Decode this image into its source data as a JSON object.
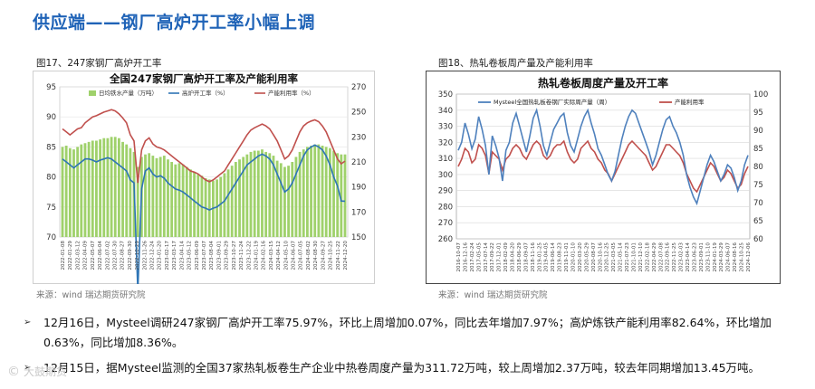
{
  "slide_title": "供应端——钢厂高炉开工率小幅上调",
  "figures": [
    {
      "caption": "图17、247家钢厂高炉开工率",
      "source": "来源：wind   瑞达期货研究院"
    },
    {
      "caption": "图18、热轧卷板周产量及产能利用率",
      "source": "来源：wind   瑞达期货研究院"
    }
  ],
  "bullets": [
    "12月16日，Mysteel调研247家钢厂高炉开工率75.97%，环比上周增加0.07%，同比去年增加7.97%；高炉炼铁产能利用率82.64%，环比增加0.63%，同比增加8.36%。",
    "12月15日，据Mysteel监测的全国37家热轧板卷生产企业中热卷周度产量为311.72万吨，较上周增加2.37万吨，较去年同期增加13.45万吨。"
  ],
  "bullet_marker": "➢",
  "watermark": {
    "icon": "wechat-like",
    "text": "大鼓期货"
  },
  "chart_data": [
    {
      "type": "bar+line",
      "title": "全国247家钢厂高炉开工率及产能利用率",
      "legend": [
        "日均铁水产量（万吨）",
        "高炉开工率（%）",
        "产能利用率（%）"
      ],
      "colors": {
        "bars": "#9fd16b",
        "blast_rate": "#2e75b6",
        "capacity": "#c0504d"
      },
      "y_left": {
        "min": 70,
        "max": 95,
        "ticks": [
          70,
          75,
          80,
          85,
          90,
          95
        ]
      },
      "y_right": {
        "min": 150,
        "max": 270,
        "ticks": [
          150,
          170,
          190,
          210,
          230,
          250,
          270
        ]
      },
      "x_labels": [
        "2022-01-08",
        "2022-01-29",
        "2022-03-12",
        "2022-04-09",
        "2022-05-07",
        "2022-06-04",
        "2022-07-02",
        "2022-07-30",
        "2022-08-27",
        "2022-09-30",
        "2022-10-29",
        "2022-11-26",
        "2022-12-24",
        "2023-01-20",
        "2023-02-17",
        "2023-03-17",
        "2023-04-14",
        "2023-05-12",
        "2023-06-09",
        "2023-07-07",
        "2023-08-04",
        "2023-09-01",
        "2023-09-29",
        "2023-10-27",
        "2023-11-24",
        "2023-12-22",
        "2024-01-19",
        "2024-02-16",
        "2024-03-15",
        "2024-04-12",
        "2024-05-10",
        "2024-06-07",
        "2024-07-05",
        "2024-08-02",
        "2024-08-30",
        "2024-09-27",
        "2024-10-25",
        "2024-11-22",
        "2024-12-20"
      ],
      "series": {
        "hot_metal": [
          222,
          223,
          221,
          220,
          222,
          224,
          225,
          226,
          227,
          227,
          228,
          229,
          229,
          230,
          230,
          229,
          226,
          224,
          221,
          218,
          206,
          214,
          216,
          217,
          215,
          213,
          214,
          215,
          212,
          210,
          208,
          209,
          208,
          206,
          204,
          202,
          200,
          199,
          197,
          196,
          195,
          196,
          198,
          201,
          204,
          207,
          210,
          212,
          214,
          216,
          218,
          219,
          219,
          220,
          218,
          217,
          215,
          211,
          209,
          206,
          207,
          210,
          214,
          218,
          220,
          222,
          223,
          224,
          224,
          223,
          222,
          221,
          219,
          217,
          216,
          216
        ],
        "blast_rate": [
          83,
          82.5,
          82,
          81.5,
          82,
          82.5,
          83,
          83,
          82.8,
          82.5,
          82.8,
          83,
          83.2,
          83,
          82.5,
          82,
          81.5,
          81,
          79.5,
          79,
          61,
          78,
          81,
          81.5,
          80.5,
          80,
          80.2,
          79.8,
          79,
          78.5,
          78,
          77.8,
          77.5,
          77,
          76.5,
          76,
          75.5,
          75,
          74.8,
          74.5,
          74.8,
          75,
          75.5,
          76,
          77,
          78,
          79,
          80,
          81,
          82,
          82.5,
          83,
          83.5,
          83.8,
          83.5,
          83,
          82,
          80.5,
          79,
          77.5,
          78,
          79,
          80.5,
          82,
          83.5,
          84.5,
          85,
          85.3,
          85,
          84.5,
          83.5,
          82,
          80,
          78.5,
          76,
          75.97
        ],
        "capacity": [
          88,
          87.5,
          87,
          87.5,
          88,
          88.2,
          89,
          89.5,
          90,
          90.2,
          90.5,
          90.8,
          91,
          91.2,
          91,
          90.5,
          89.8,
          89,
          87,
          86,
          79,
          84.5,
          86,
          86.5,
          85.5,
          85,
          84.8,
          84.5,
          84,
          83.5,
          83,
          82.5,
          82,
          81.5,
          81,
          80.8,
          80.5,
          80,
          79.5,
          79.2,
          79.5,
          80,
          80.5,
          81,
          82,
          83,
          84,
          85,
          86,
          87,
          87.8,
          88.2,
          88.5,
          88.8,
          88.5,
          88,
          87,
          86,
          84.5,
          83,
          83.5,
          84.5,
          86,
          87.5,
          88.5,
          89,
          89.3,
          89.5,
          89.2,
          88.5,
          87.5,
          86,
          84.5,
          83,
          82.2,
          82.64
        ]
      }
    },
    {
      "type": "line",
      "title": "热轧卷板周度产量及开工率",
      "legend": [
        "Mysteel全国热轧板卷钢厂实际周产量（周）",
        "产能利用率"
      ],
      "colors": {
        "output": "#4f81bd",
        "utilization": "#c0504d"
      },
      "y_left": {
        "min": 260,
        "max": 350,
        "ticks": [
          260,
          270,
          280,
          290,
          300,
          310,
          320,
          330,
          340,
          350
        ]
      },
      "y_right": {
        "min": 60,
        "max": 100,
        "ticks": [
          60,
          65,
          70,
          75,
          80,
          85,
          90,
          95,
          100
        ]
      },
      "x_labels": [
        "2016-10-07",
        "2016-12-16",
        "2017-02-24",
        "2017-05-05",
        "2017-07-14",
        "2017-09-22",
        "2017-12-01",
        "2018-02-09",
        "2018-04-20",
        "2018-06-29",
        "2018-09-07",
        "2018-11-16",
        "2019-01-25",
        "2019-04-05",
        "2019-06-14",
        "2019-08-23",
        "2019-11-01",
        "2020-01-10",
        "2020-03-20",
        "2020-05-29",
        "2020-08-07",
        "2020-10-16",
        "2020-12-25",
        "2021-03-05",
        "2021-05-14",
        "2021-07-23",
        "2021-10-01",
        "2021-12-10",
        "2022-02-18",
        "2022-04-29",
        "2022-07-08",
        "2022-09-16",
        "2022-11-25",
        "2023-02-03",
        "2023-04-14",
        "2023-06-23",
        "2023-09-01",
        "2023-11-10",
        "2024-01-19",
        "2024-03-29",
        "2024-06-07",
        "2024-08-16",
        "2024-10-25",
        "2024-12-06"
      ],
      "series": {
        "output": [
          315,
          320,
          332,
          325,
          316,
          322,
          336,
          328,
          318,
          300,
          324,
          318,
          310,
          296,
          315,
          320,
          332,
          338,
          330,
          322,
          314,
          324,
          335,
          340,
          330,
          318,
          312,
          320,
          328,
          332,
          336,
          338,
          326,
          318,
          314,
          322,
          330,
          336,
          340,
          332,
          325,
          316,
          312,
          306,
          300,
          296,
          302,
          312,
          322,
          330,
          336,
          340,
          338,
          332,
          326,
          320,
          314,
          306,
          312,
          320,
          328,
          334,
          336,
          330,
          326,
          320,
          312,
          300,
          292,
          286,
          282,
          290,
          298,
          306,
          312,
          308,
          302,
          296,
          300,
          306,
          304,
          298,
          290,
          296,
          306,
          312
        ],
        "utilization": [
          80,
          82,
          85,
          84,
          81,
          82,
          86,
          85,
          83,
          78,
          84,
          83,
          82,
          79,
          82,
          83,
          85,
          86,
          85,
          83,
          82,
          84,
          86,
          87,
          86,
          83,
          82,
          83,
          85,
          86,
          86,
          87,
          84,
          82,
          81,
          82,
          85,
          86,
          87,
          85,
          84,
          82,
          81,
          79,
          78,
          76,
          78,
          80,
          82,
          84,
          86,
          87,
          86,
          85,
          84,
          83,
          81,
          79,
          80,
          82,
          84,
          86,
          86,
          85,
          84,
          83,
          81,
          78,
          76,
          74,
          73,
          75,
          77,
          79,
          81,
          80,
          78,
          76,
          77,
          79,
          78,
          76,
          74,
          75,
          78,
          80
        ]
      }
    }
  ]
}
